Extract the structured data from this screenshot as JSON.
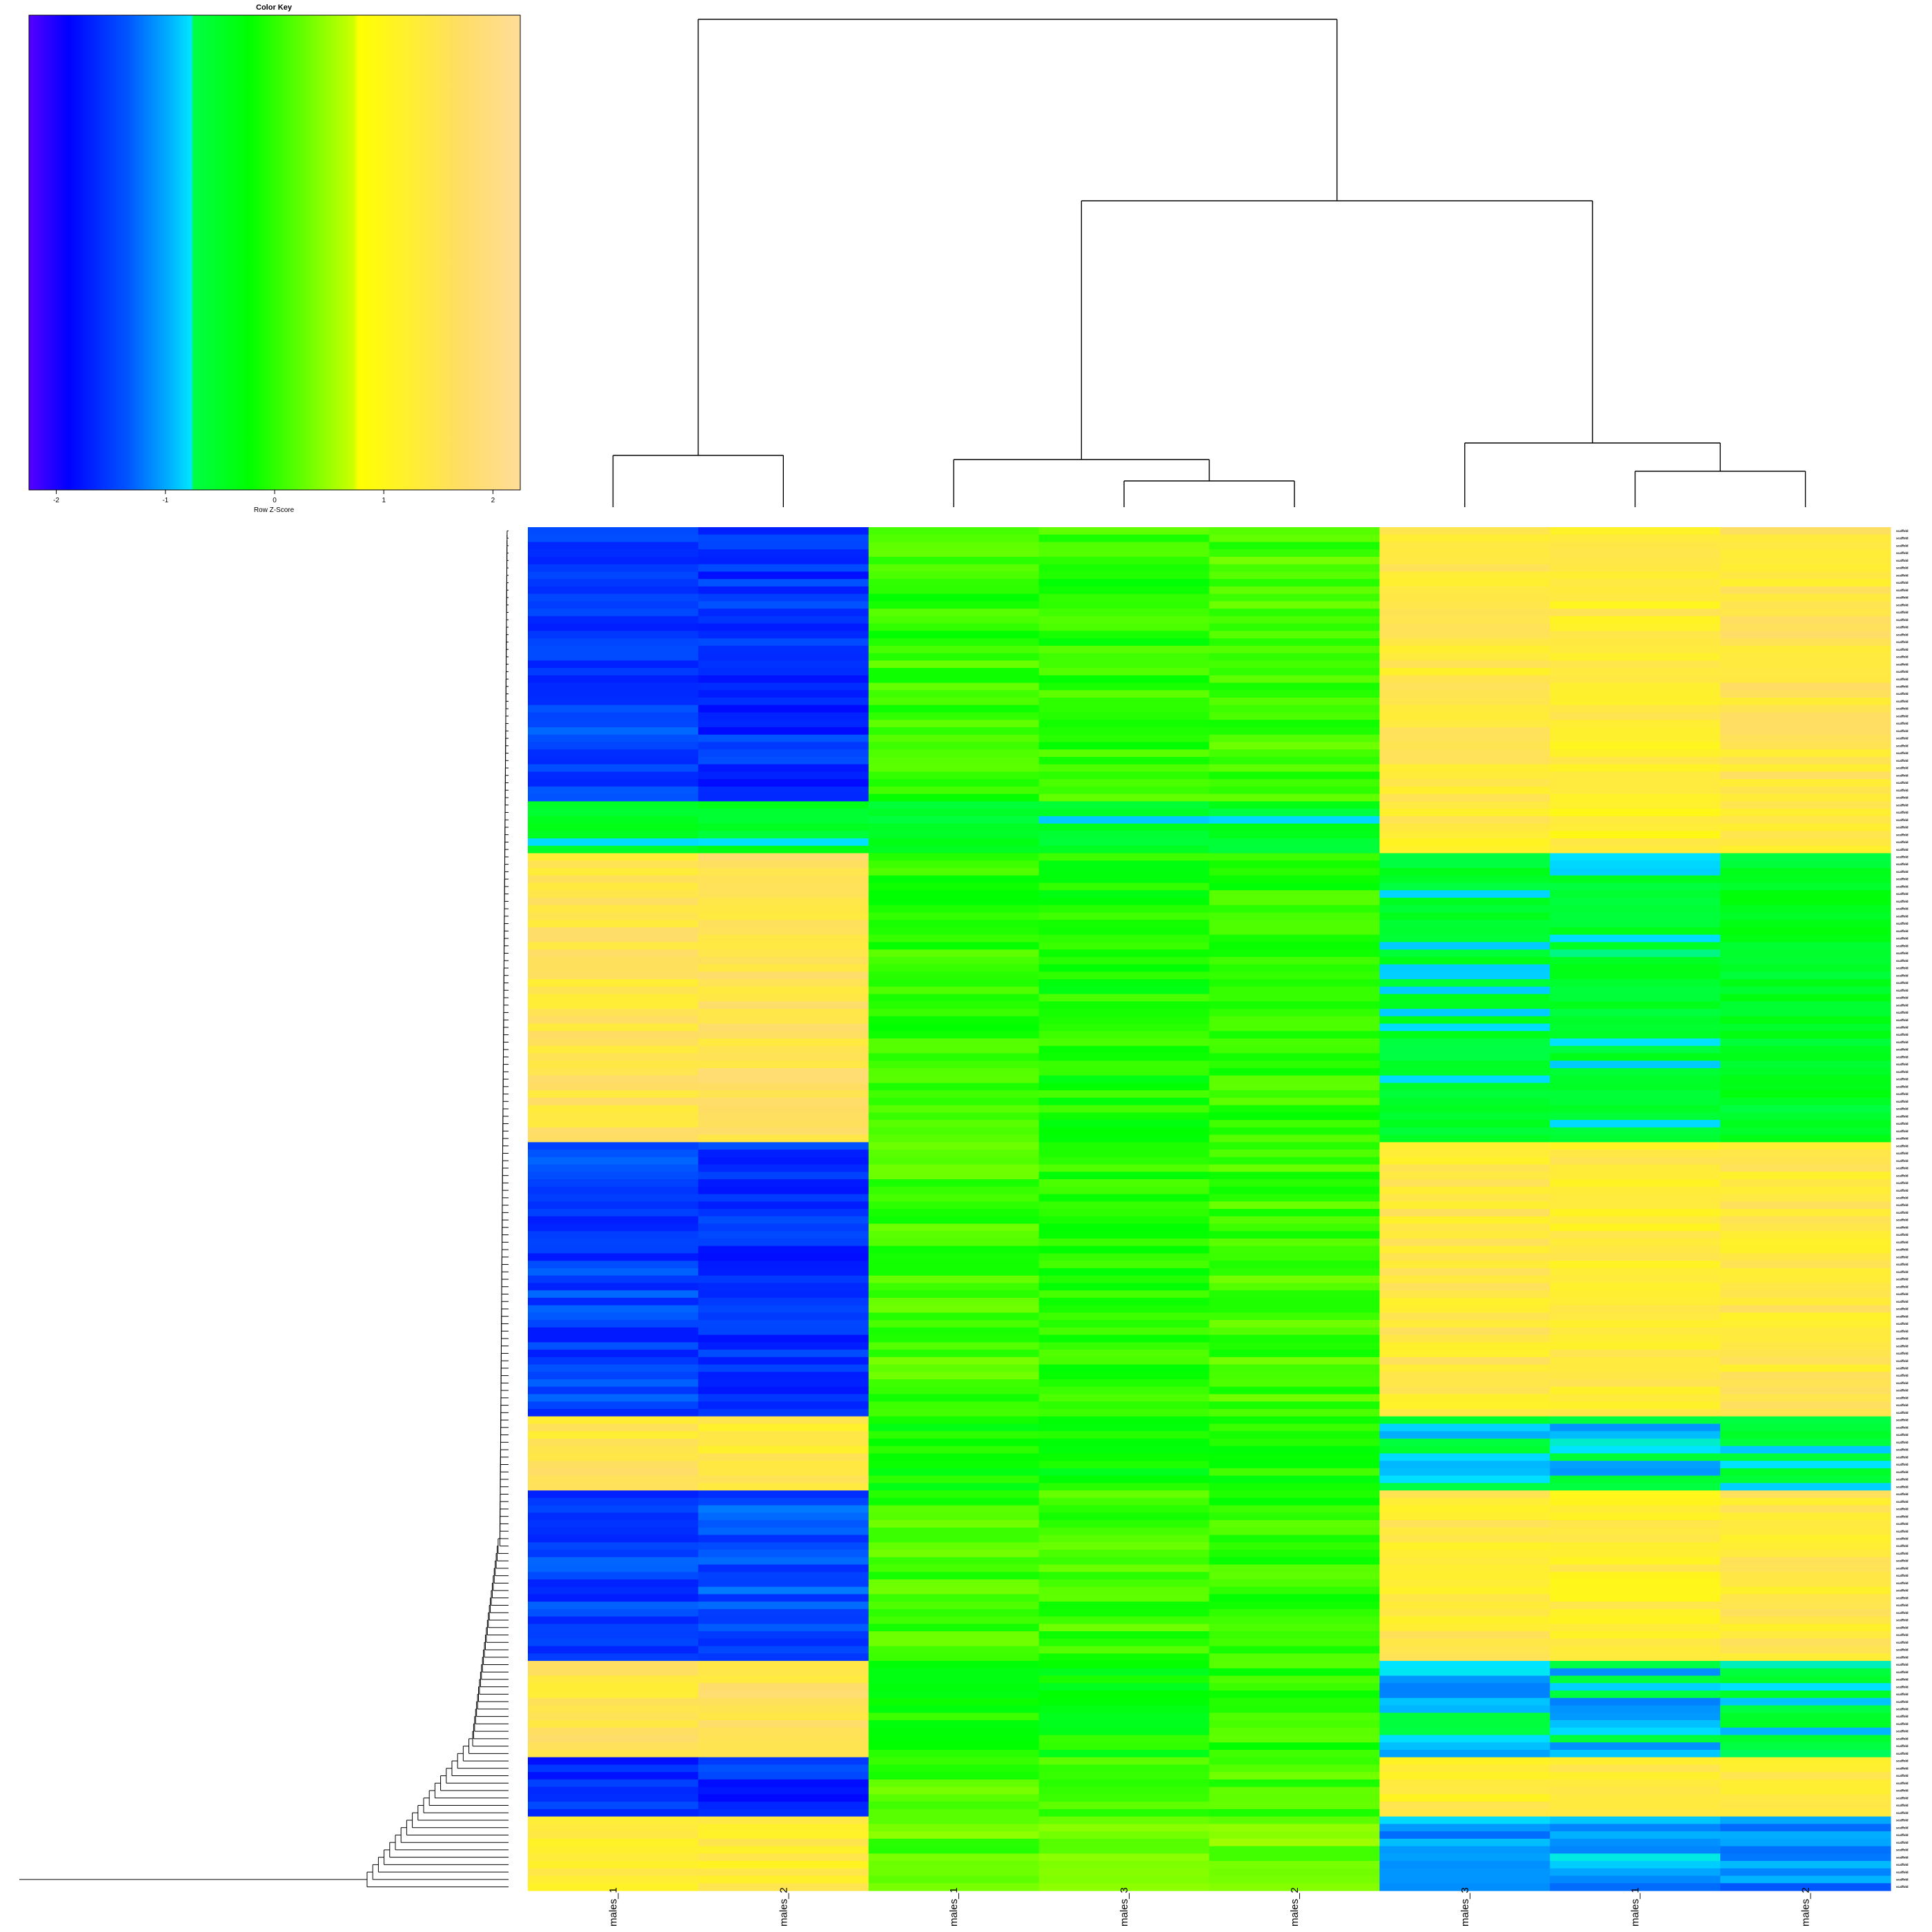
{
  "chart_data": {
    "type": "heatmap",
    "color_key": {
      "title": "Color Key",
      "xlabel": "Row Z-Score",
      "ticks": [
        -2,
        -1,
        0,
        1,
        2
      ],
      "range": [
        -2.25,
        2.25
      ],
      "colors": [
        "#5500ff",
        "#0000ff",
        "#0055ff",
        "#00aaff",
        "#00e5ff",
        "#00ff44",
        "#00ff00",
        "#66ff00",
        "#ccff00",
        "#ffff00",
        "#ffee33",
        "#ffdd66",
        "#ffdd99"
      ]
    },
    "columns": [
      "males_1",
      "males_2",
      "males_1",
      "males_3",
      "males_2",
      "males_3",
      "males_1",
      "males_2"
    ],
    "row_label_prefix": "scaffold",
    "row_count": 184,
    "row_blocks": [
      {
        "rows": 37,
        "values": [
          -1.5,
          -1.6,
          0.05,
          0.0,
          0.1,
          1.4,
          1.3,
          1.45
        ]
      },
      {
        "rows": 7,
        "values": [
          -0.6,
          -0.6,
          -0.6,
          -0.6,
          -0.6,
          1.3,
          1.2,
          1.4
        ]
      },
      {
        "rows": 39,
        "values": [
          1.5,
          1.6,
          0.0,
          -0.1,
          0.0,
          -0.6,
          -0.6,
          -0.5
        ]
      },
      {
        "rows": 37,
        "values": [
          -1.5,
          -1.6,
          0.1,
          0.0,
          0.1,
          1.4,
          1.3,
          1.4
        ]
      },
      {
        "rows": 10,
        "values": [
          1.5,
          1.4,
          -0.2,
          -0.2,
          -0.1,
          -0.8,
          -0.8,
          -0.7
        ]
      },
      {
        "rows": 23,
        "values": [
          -1.5,
          -1.4,
          0.1,
          0.1,
          0.0,
          1.35,
          1.25,
          1.4
        ]
      },
      {
        "rows": 13,
        "values": [
          1.5,
          1.6,
          -0.1,
          -0.2,
          0.0,
          -0.9,
          -0.9,
          -0.7
        ]
      },
      {
        "rows": 8,
        "values": [
          -1.6,
          -1.6,
          0.1,
          0.2,
          0.1,
          1.3,
          1.25,
          1.3
        ]
      },
      {
        "rows": 10,
        "values": [
          1.2,
          1.3,
          0.2,
          0.3,
          0.3,
          -1.0,
          -1.0,
          -1.1
        ]
      }
    ]
  }
}
